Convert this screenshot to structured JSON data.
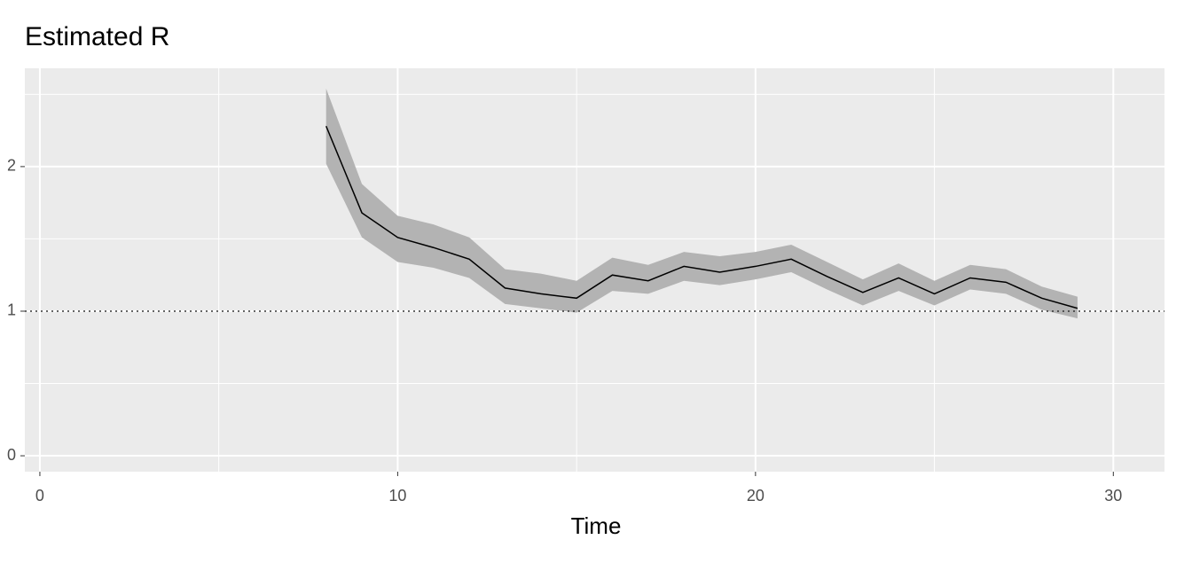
{
  "chart_data": {
    "type": "line",
    "title": "Estimated R",
    "xlabel": "Time",
    "x": [
      8,
      9,
      10,
      11,
      12,
      13,
      14,
      15,
      16,
      17,
      18,
      19,
      20,
      21,
      22,
      23,
      24,
      25,
      26,
      27,
      28,
      29
    ],
    "values": [
      2.28,
      1.68,
      1.51,
      1.44,
      1.36,
      1.16,
      1.12,
      1.09,
      1.25,
      1.21,
      1.31,
      1.27,
      1.31,
      1.36,
      1.24,
      1.13,
      1.23,
      1.12,
      1.23,
      1.2,
      1.09,
      1.02
    ],
    "ci_lower": [
      2.02,
      1.51,
      1.34,
      1.3,
      1.23,
      1.05,
      1.02,
      0.99,
      1.14,
      1.12,
      1.21,
      1.18,
      1.22,
      1.27,
      1.15,
      1.04,
      1.14,
      1.04,
      1.15,
      1.12,
      1.01,
      0.95
    ],
    "ci_upper": [
      2.54,
      1.88,
      1.66,
      1.6,
      1.51,
      1.29,
      1.26,
      1.21,
      1.37,
      1.32,
      1.41,
      1.38,
      1.41,
      1.46,
      1.34,
      1.22,
      1.33,
      1.21,
      1.32,
      1.29,
      1.17,
      1.1
    ],
    "color": "#000000",
    "band_color": "#b3b3b3",
    "reference_line": 1,
    "xlim": [
      -0.42,
      31.43
    ],
    "ylim": [
      -0.11,
      2.68
    ],
    "xticks": [
      0,
      10,
      20,
      30
    ],
    "yticks": [
      0,
      1,
      2
    ],
    "grid": true
  }
}
